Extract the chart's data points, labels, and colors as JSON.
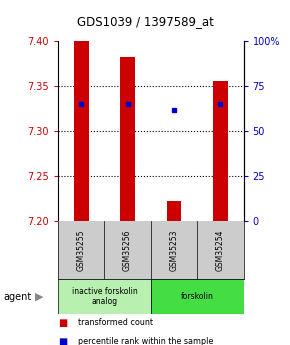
{
  "title": "GDS1039 / 1397589_at",
  "samples": [
    "GSM35255",
    "GSM35256",
    "GSM35253",
    "GSM35254"
  ],
  "bar_values": [
    7.4,
    7.383,
    7.222,
    7.356
  ],
  "percentile_values": [
    65,
    65,
    62,
    65
  ],
  "ymin": 7.2,
  "ymax": 7.4,
  "y2min": 0,
  "y2max": 100,
  "yticks": [
    7.2,
    7.25,
    7.3,
    7.35,
    7.4
  ],
  "y2ticks": [
    0,
    25,
    50,
    75,
    100
  ],
  "gridlines": [
    7.25,
    7.3,
    7.35
  ],
  "bar_color": "#cc0000",
  "dot_color": "#0000cc",
  "groups": [
    {
      "label": "inactive forskolin\nanalog",
      "color": "#b8f0b0",
      "samples": [
        0,
        1
      ]
    },
    {
      "label": "forskolin",
      "color": "#44dd44",
      "samples": [
        2,
        3
      ]
    }
  ],
  "legend_items": [
    {
      "color": "#cc0000",
      "label": "transformed count"
    },
    {
      "color": "#0000cc",
      "label": "percentile rank within the sample"
    }
  ],
  "agent_label": "agent",
  "bar_width": 0.32,
  "bg_color": "#ffffff",
  "axis_left_color": "#cc0000",
  "axis_right_color": "#0000cc",
  "sample_area_color": "#cccccc",
  "title_fontsize": 8.5
}
